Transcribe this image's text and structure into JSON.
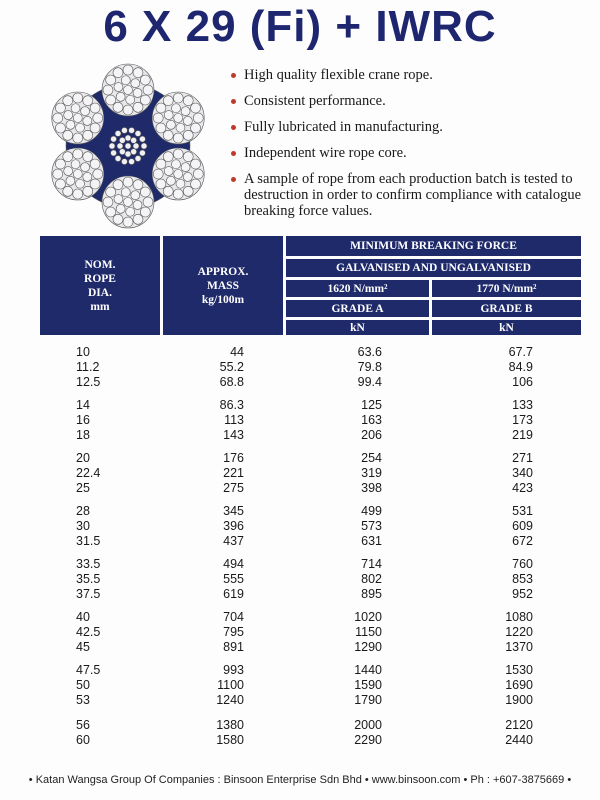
{
  "title": "6 X 29 (Fi) + IWRC",
  "colors": {
    "navy": "#1f2a6b",
    "title": "#1f2670",
    "bullet": "#c0392b"
  },
  "features": [
    "High quality flexible crane rope.",
    "Consistent performance.",
    "Fully lubricated in manufacturing.",
    "Independent wire rope core.",
    "A sample of rope from each production batch is tested to destruction in order to confirm compliance with catalogue breaking force values."
  ],
  "table": {
    "headers": {
      "dia": [
        "NOM.",
        "ROPE",
        "DIA.",
        "mm"
      ],
      "mass": [
        "APPROX.",
        "MASS",
        "kg/100m"
      ],
      "mbf": "MINIMUM BREAKING FORCE",
      "finish": "GALVANISED AND UNGALVANISED",
      "tensile_a": "1620 N/mm²",
      "tensile_b": "1770 N/mm²",
      "grade_a": "GRADE A",
      "grade_b": "GRADE B",
      "unit_a": "kN",
      "unit_b": "kN"
    },
    "groups": [
      [
        [
          "10",
          "44",
          "63.6",
          "67.7"
        ],
        [
          "11.2",
          "55.2",
          "79.8",
          "84.9"
        ],
        [
          "12.5",
          "68.8",
          "99.4",
          "106"
        ]
      ],
      [
        [
          "14",
          "86.3",
          "125",
          "133"
        ],
        [
          "16",
          "113",
          "163",
          "173"
        ],
        [
          "18",
          "143",
          "206",
          "219"
        ]
      ],
      [
        [
          "20",
          "176",
          "254",
          "271"
        ],
        [
          "22.4",
          "221",
          "319",
          "340"
        ],
        [
          "25",
          "275",
          "398",
          "423"
        ]
      ],
      [
        [
          "28",
          "345",
          "499",
          "531"
        ],
        [
          "30",
          "396",
          "573",
          "609"
        ],
        [
          "31.5",
          "437",
          "631",
          "672"
        ]
      ],
      [
        [
          "33.5",
          "494",
          "714",
          "760"
        ],
        [
          "35.5",
          "555",
          "802",
          "853"
        ],
        [
          "37.5",
          "619",
          "895",
          "952"
        ]
      ],
      [
        [
          "40",
          "704",
          "1020",
          "1080"
        ],
        [
          "42.5",
          "795",
          "1150",
          "1220"
        ],
        [
          "45",
          "891",
          "1290",
          "1370"
        ]
      ],
      [
        [
          "47.5",
          "993",
          "1440",
          "1530"
        ],
        [
          "50",
          "1100",
          "1590",
          "1690"
        ],
        [
          "53",
          "1240",
          "1790",
          "1900"
        ]
      ],
      [
        [
          "56",
          "1380",
          "2000",
          "2120"
        ],
        [
          "60",
          "1580",
          "2290",
          "2440"
        ]
      ]
    ]
  },
  "footer": "• Katan Wangsa Group Of Companies : Binsoon Enterprise Sdn Bhd • www.binsoon.com • Ph : +607-3875669 •"
}
